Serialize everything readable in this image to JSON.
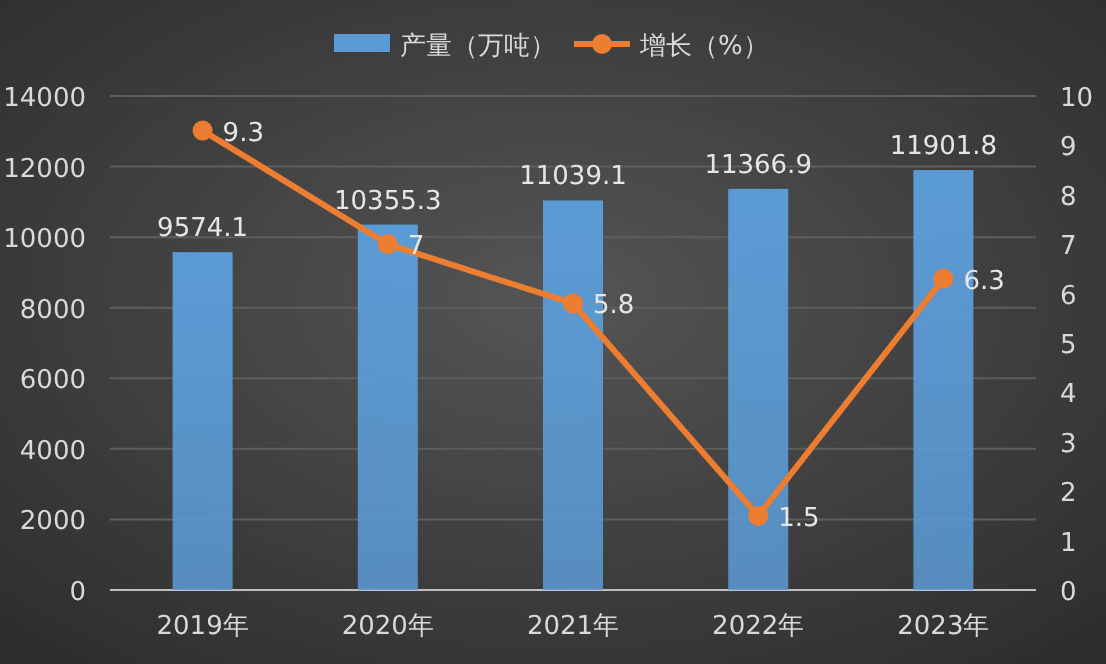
{
  "chart_data": {
    "type": "bar",
    "categories": [
      "2019年",
      "2020年",
      "2021年",
      "2022年",
      "2023年"
    ],
    "series": [
      {
        "name": "产量（万吨）",
        "color": "#5b9bd5",
        "values": [
          9574.1,
          10355.3,
          11039.1,
          11366.9,
          11901.8
        ]
      },
      {
        "name": "增长（%）",
        "type": "line",
        "axis": "y2",
        "color": "#ed7d31",
        "marker": "circle",
        "values": [
          9.3,
          7,
          5.8,
          1.5,
          6.3
        ]
      }
    ],
    "ylim": [
      0,
      14000
    ],
    "yticks": [
      0,
      2000,
      4000,
      6000,
      8000,
      10000,
      12000,
      14000
    ],
    "y2lim": [
      0,
      10
    ],
    "y2ticks": [
      0,
      1,
      2,
      3,
      4,
      5,
      6,
      7,
      8,
      9,
      10
    ],
    "grid": "y",
    "legend": "top",
    "data_labels": true
  }
}
